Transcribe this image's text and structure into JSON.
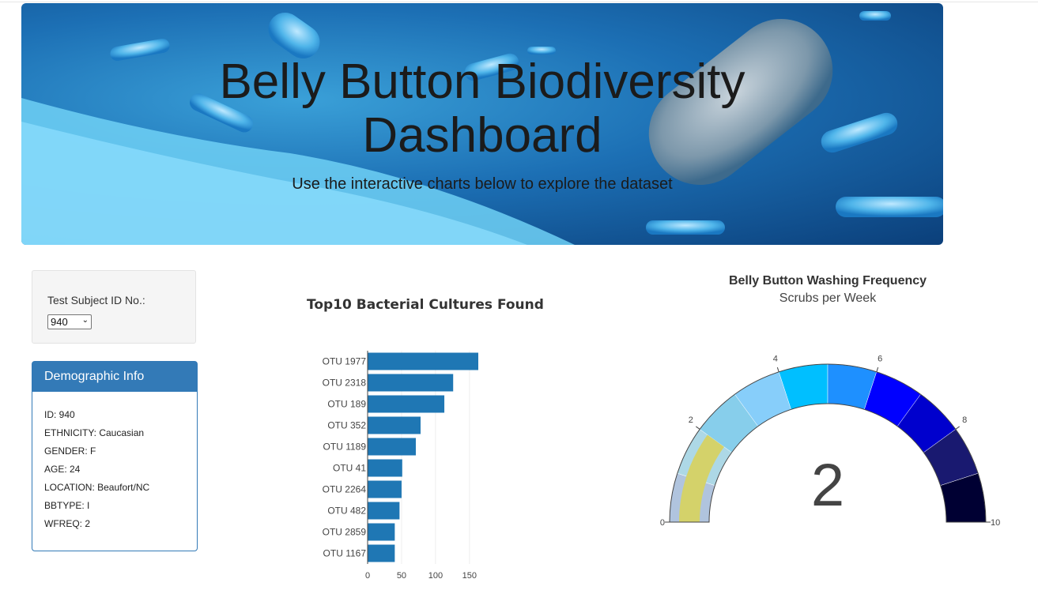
{
  "header": {
    "title": "Belly Button Biodiversity Dashboard",
    "subtitle": "Use the interactive charts below to explore the dataset"
  },
  "selector": {
    "label": "Test Subject ID No.:",
    "selected": "940"
  },
  "demographics": {
    "heading": "Demographic Info",
    "items": [
      "ID: 940",
      "ETHNICITY: Caucasian",
      "GENDER: F",
      "AGE: 24",
      "LOCATION: Beaufort/NC",
      "BBTYPE: I",
      "WFREQ: 2"
    ]
  },
  "colors": {
    "panel_blue": "#337ab7",
    "bar_blue": "#1f77b4",
    "gauge_needle": "#d4d26a"
  },
  "chart_data": [
    {
      "type": "bar",
      "orientation": "horizontal",
      "title": "Top10 Bacterial Cultures Found",
      "categories": [
        "OTU 1977",
        "OTU 2318",
        "OTU 189",
        "OTU 352",
        "OTU 1189",
        "OTU 41",
        "OTU 2264",
        "OTU 482",
        "OTU 2859",
        "OTU 1167"
      ],
      "values": [
        163,
        126,
        113,
        78,
        71,
        51,
        50,
        47,
        40,
        40
      ],
      "xticks": [
        0,
        50,
        100,
        150
      ],
      "xlim": [
        0,
        163
      ],
      "grid": true
    },
    {
      "type": "gauge",
      "title": "Belly Button Washing Frequency",
      "subtitle": "Scrubs per Week",
      "value": 2,
      "range": [
        0,
        10
      ],
      "ticks": [
        0,
        2,
        4,
        6,
        8,
        10
      ],
      "steps": [
        {
          "range": [
            0,
            1
          ],
          "color": "#b0c4de"
        },
        {
          "range": [
            1,
            2
          ],
          "color": "#add8e6"
        },
        {
          "range": [
            2,
            3
          ],
          "color": "#87ceeb"
        },
        {
          "range": [
            3,
            4
          ],
          "color": "#87cefa"
        },
        {
          "range": [
            4,
            5
          ],
          "color": "#00bfff"
        },
        {
          "range": [
            5,
            6
          ],
          "color": "#1e90ff"
        },
        {
          "range": [
            6,
            7
          ],
          "color": "#0000ff"
        },
        {
          "range": [
            7,
            8
          ],
          "color": "#0000cd"
        },
        {
          "range": [
            8,
            9
          ],
          "color": "#191970"
        },
        {
          "range": [
            9,
            10
          ],
          "color": "#000033"
        }
      ]
    }
  ]
}
